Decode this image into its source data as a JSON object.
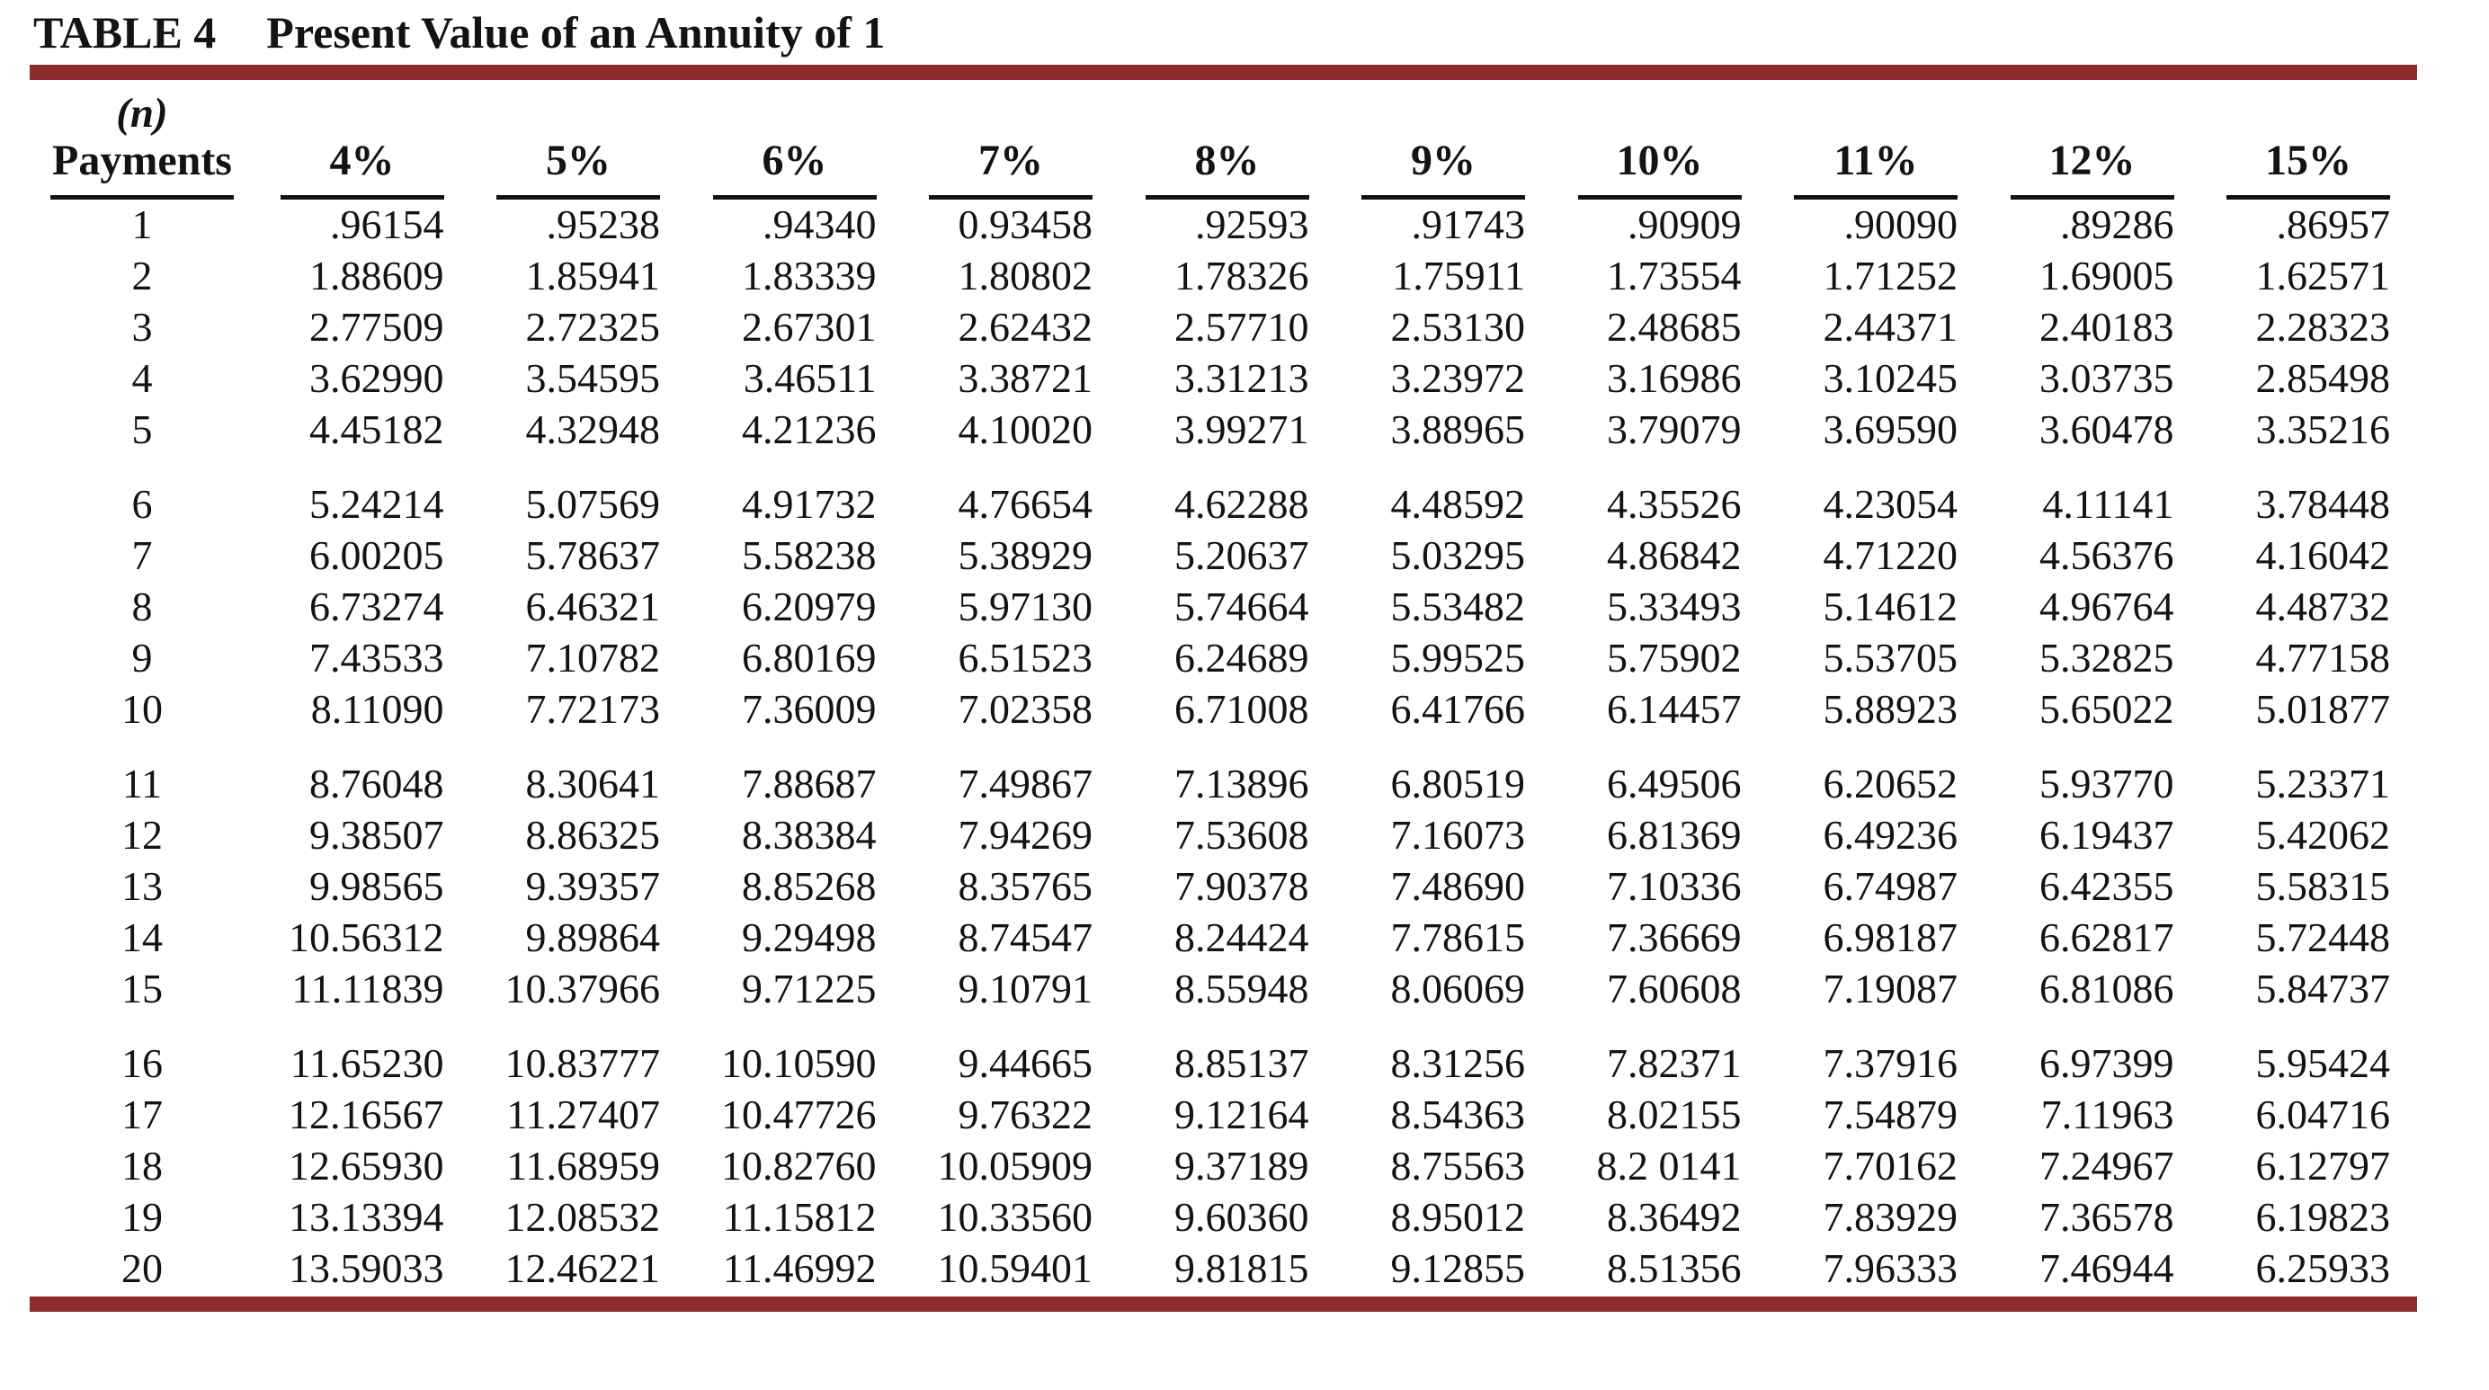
{
  "title": {
    "label": "TABLE 4",
    "subtitle": "Present Value of an Annuity of 1"
  },
  "colors": {
    "accent_bar": "#8E2B2B",
    "text": "#131313"
  },
  "table": {
    "col_header_top": "(n)",
    "columns": [
      "Payments",
      "4%",
      "5%",
      "6%",
      "7%",
      "8%",
      "9%",
      "10%",
      "11%",
      "12%",
      "15%"
    ],
    "rows": [
      {
        "n": "1",
        "values": [
          ".96154",
          ".95238",
          ".94340",
          "0.93458",
          ".92593",
          ".91743",
          ".90909",
          ".90090",
          ".89286",
          ".86957"
        ]
      },
      {
        "n": "2",
        "values": [
          "1.88609",
          "1.85941",
          "1.83339",
          "1.80802",
          "1.78326",
          "1.75911",
          "1.73554",
          "1.71252",
          "1.69005",
          "1.62571"
        ]
      },
      {
        "n": "3",
        "values": [
          "2.77509",
          "2.72325",
          "2.67301",
          "2.62432",
          "2.57710",
          "2.53130",
          "2.48685",
          "2.44371",
          "2.40183",
          "2.28323"
        ]
      },
      {
        "n": "4",
        "values": [
          "3.62990",
          "3.54595",
          "3.46511",
          "3.38721",
          "3.31213",
          "3.23972",
          "3.16986",
          "3.10245",
          "3.03735",
          "2.85498"
        ]
      },
      {
        "n": "5",
        "values": [
          "4.45182",
          "4.32948",
          "4.21236",
          "4.10020",
          "3.99271",
          "3.88965",
          "3.79079",
          "3.69590",
          "3.60478",
          "3.35216"
        ]
      },
      {
        "n": "6",
        "values": [
          "5.24214",
          "5.07569",
          "4.91732",
          "4.76654",
          "4.62288",
          "4.48592",
          "4.35526",
          "4.23054",
          "4.11141",
          "3.78448"
        ]
      },
      {
        "n": "7",
        "values": [
          "6.00205",
          "5.78637",
          "5.58238",
          "5.38929",
          "5.20637",
          "5.03295",
          "4.86842",
          "4.71220",
          "4.56376",
          "4.16042"
        ]
      },
      {
        "n": "8",
        "values": [
          "6.73274",
          "6.46321",
          "6.20979",
          "5.97130",
          "5.74664",
          "5.53482",
          "5.33493",
          "5.14612",
          "4.96764",
          "4.48732"
        ]
      },
      {
        "n": "9",
        "values": [
          "7.43533",
          "7.10782",
          "6.80169",
          "6.51523",
          "6.24689",
          "5.99525",
          "5.75902",
          "5.53705",
          "5.32825",
          "4.77158"
        ]
      },
      {
        "n": "10",
        "values": [
          "8.11090",
          "7.72173",
          "7.36009",
          "7.02358",
          "6.71008",
          "6.41766",
          "6.14457",
          "5.88923",
          "5.65022",
          "5.01877"
        ]
      },
      {
        "n": "11",
        "values": [
          "8.76048",
          "8.30641",
          "7.88687",
          "7.49867",
          "7.13896",
          "6.80519",
          "6.49506",
          "6.20652",
          "5.93770",
          "5.23371"
        ]
      },
      {
        "n": "12",
        "values": [
          "9.38507",
          "8.86325",
          "8.38384",
          "7.94269",
          "7.53608",
          "7.16073",
          "6.81369",
          "6.49236",
          "6.19437",
          "5.42062"
        ]
      },
      {
        "n": "13",
        "values": [
          "9.98565",
          "9.39357",
          "8.85268",
          "8.35765",
          "7.90378",
          "7.48690",
          "7.10336",
          "6.74987",
          "6.42355",
          "5.58315"
        ]
      },
      {
        "n": "14",
        "values": [
          "10.56312",
          "9.89864",
          "9.29498",
          "8.74547",
          "8.24424",
          "7.78615",
          "7.36669",
          "6.98187",
          "6.62817",
          "5.72448"
        ]
      },
      {
        "n": "15",
        "values": [
          "11.11839",
          "10.37966",
          "9.71225",
          "9.10791",
          "8.55948",
          "8.06069",
          "7.60608",
          "7.19087",
          "6.81086",
          "5.84737"
        ]
      },
      {
        "n": "16",
        "values": [
          "11.65230",
          "10.83777",
          "10.10590",
          "9.44665",
          "8.85137",
          "8.31256",
          "7.82371",
          "7.37916",
          "6.97399",
          "5.95424"
        ]
      },
      {
        "n": "17",
        "values": [
          "12.16567",
          "11.27407",
          "10.47726",
          "9.76322",
          "9.12164",
          "8.54363",
          "8.02155",
          "7.54879",
          "7.11963",
          "6.04716"
        ]
      },
      {
        "n": "18",
        "values": [
          "12.65930",
          "11.68959",
          "10.82760",
          "10.05909",
          "9.37189",
          "8.75563",
          "8.2 0141",
          "7.70162",
          "7.24967",
          "6.12797"
        ]
      },
      {
        "n": "19",
        "values": [
          "13.13394",
          "12.08532",
          "11.15812",
          "10.33560",
          "9.60360",
          "8.95012",
          "8.36492",
          "7.83929",
          "7.36578",
          "6.19823"
        ]
      },
      {
        "n": "20",
        "values": [
          "13.59033",
          "12.46221",
          "11.46992",
          "10.59401",
          "9.81815",
          "9.12855",
          "8.51356",
          "7.96333",
          "7.46944",
          "6.25933"
        ]
      }
    ]
  }
}
